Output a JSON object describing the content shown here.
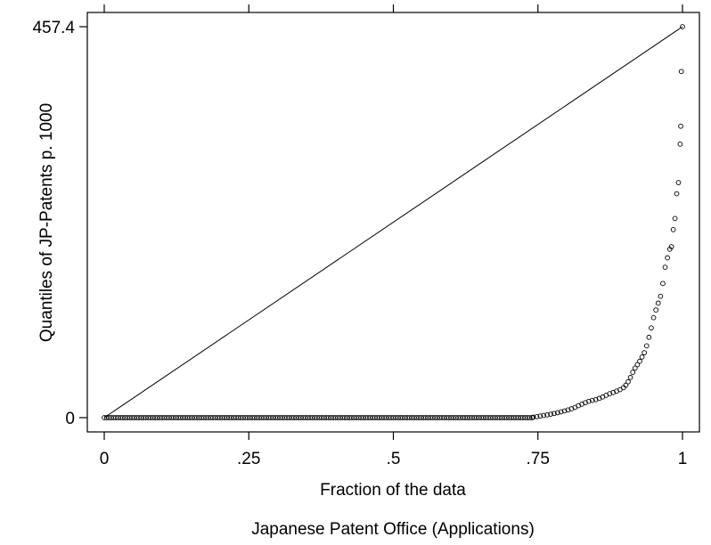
{
  "chart_data": {
    "type": "scatter",
    "title": "Japanese Patent Office (Applications)",
    "xlabel": "Fraction of the data",
    "ylabel": "Quantiles of JP-Patents p. 1000",
    "xlim": [
      0,
      1
    ],
    "ylim": [
      0,
      457.4
    ],
    "xticks": [
      {
        "value": 0,
        "label": "0"
      },
      {
        "value": 0.25,
        "label": ".25"
      },
      {
        "value": 0.5,
        "label": ".5"
      },
      {
        "value": 0.75,
        "label": ".75"
      },
      {
        "value": 1,
        "label": "1"
      }
    ],
    "yticks": [
      {
        "value": 0,
        "label": "0"
      },
      {
        "value": 457.4,
        "label": "457.4"
      }
    ],
    "reference_line": {
      "x": [
        0,
        1
      ],
      "y": [
        0,
        457.4
      ]
    },
    "grid": false,
    "marker_color": "#000000",
    "zero_run": {
      "x_start": 0,
      "x_end": 0.74,
      "step": 0.004,
      "y": 0
    },
    "points": [
      [
        0.742,
        0.6
      ],
      [
        0.748,
        1.2
      ],
      [
        0.754,
        1.9
      ],
      [
        0.76,
        2.6
      ],
      [
        0.766,
        3.3
      ],
      [
        0.772,
        4.1
      ],
      [
        0.778,
        4.9
      ],
      [
        0.784,
        5.8
      ],
      [
        0.79,
        6.8
      ],
      [
        0.796,
        7.9
      ],
      [
        0.802,
        9.0
      ],
      [
        0.808,
        10.4
      ],
      [
        0.814,
        12.0
      ],
      [
        0.82,
        14.0
      ],
      [
        0.826,
        15.8
      ],
      [
        0.832,
        17.5
      ],
      [
        0.838,
        19.1
      ],
      [
        0.844,
        20.2
      ],
      [
        0.85,
        21.1
      ],
      [
        0.856,
        22.5
      ],
      [
        0.862,
        24.2
      ],
      [
        0.868,
        26.2
      ],
      [
        0.874,
        28.0
      ],
      [
        0.88,
        29.4
      ],
      [
        0.886,
        31.0
      ],
      [
        0.892,
        32.8
      ],
      [
        0.898,
        35.0
      ],
      [
        0.902,
        38.0
      ],
      [
        0.906,
        42.0
      ],
      [
        0.91,
        47.0
      ],
      [
        0.914,
        53.0
      ],
      [
        0.918,
        58.0
      ],
      [
        0.922,
        62.0
      ],
      [
        0.926,
        66.0
      ],
      [
        0.93,
        71.0
      ],
      [
        0.934,
        76.0
      ],
      [
        0.938,
        84.0
      ],
      [
        0.942,
        94.0
      ],
      [
        0.946,
        105.0
      ],
      [
        0.95,
        117.0
      ],
      [
        0.954,
        126.0
      ],
      [
        0.958,
        134.0
      ],
      [
        0.962,
        142.0
      ],
      [
        0.966,
        157.0
      ],
      [
        0.97,
        176.0
      ],
      [
        0.974,
        187.0
      ],
      [
        0.978,
        197.0
      ],
      [
        0.981,
        200.0
      ],
      [
        0.984,
        220.0
      ],
      [
        0.987,
        233.0
      ],
      [
        0.99,
        262.0
      ],
      [
        0.993,
        275.0
      ],
      [
        0.996,
        320.0
      ],
      [
        0.997,
        341.0
      ],
      [
        0.998,
        405.0
      ],
      [
        1.0,
        457.4
      ]
    ]
  }
}
